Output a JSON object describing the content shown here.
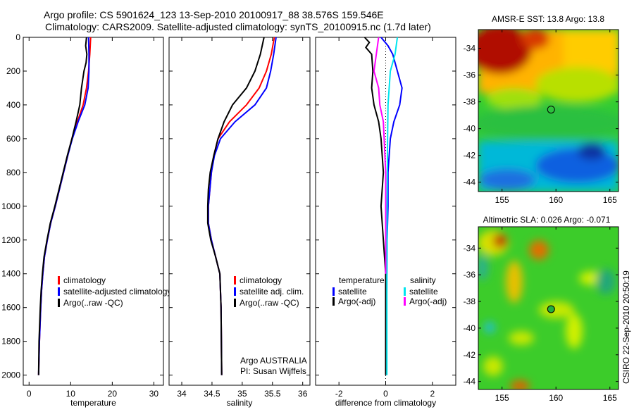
{
  "title_line1": "Argo profile: CS 5901624_123 13-Sep-2010 20100917_88 38.576S 159.546E",
  "title_line2": "Climatology: CARS2009. Satellite-adjusted climatology: synTS_20100915.nc (1.7d later)",
  "colors": {
    "climatology": "#ff0000",
    "satellite": "#0000ff",
    "argo": "#000000",
    "sal_satellite": "#00e5ee",
    "sal_argo": "#ff00ff"
  },
  "chart_data": [
    {
      "type": "line",
      "name": "temperature",
      "xlabel": "temperature",
      "ylabel": "depth",
      "xlim": [
        -1.4,
        32.3
      ],
      "ylim": [
        0,
        2060
      ],
      "xticks": [
        0,
        10,
        20,
        30
      ],
      "yticks": [
        0,
        200,
        400,
        600,
        800,
        1000,
        1200,
        1400,
        1600,
        1800,
        2000
      ],
      "legend": [
        "climatology",
        "satellite-adjusted climatology",
        "Argo(..raw -QC)"
      ],
      "series": [
        {
          "name": "climatology",
          "color": "climatology",
          "depth": [
            0,
            100,
            200,
            300,
            400,
            500,
            600,
            700,
            800,
            900,
            1000,
            1100,
            1200,
            1300,
            1400,
            1500,
            1600,
            1800,
            2000
          ],
          "values": [
            14.8,
            14.6,
            14.3,
            13.8,
            13.0,
            11.6,
            10.3,
            9.3,
            8.3,
            7.3,
            6.3,
            5.2,
            4.4,
            3.7,
            3.3,
            3.0,
            2.8,
            2.5,
            2.3
          ]
        },
        {
          "name": "satellite-adjusted climatology",
          "color": "satellite",
          "depth": [
            0,
            100,
            200,
            300,
            400,
            500,
            600,
            700,
            800,
            900,
            1000,
            1100,
            1200,
            1300,
            1400,
            1500,
            1600,
            1800,
            2000
          ],
          "values": [
            14.3,
            14.4,
            14.4,
            14.2,
            13.4,
            11.8,
            10.4,
            9.3,
            8.3,
            7.3,
            6.3,
            5.2,
            4.4,
            3.7,
            3.3,
            3.0,
            2.8,
            2.5,
            2.3
          ]
        },
        {
          "name": "Argo(..raw -QC)",
          "color": "argo",
          "depth": [
            0,
            50,
            100,
            150,
            200,
            300,
            400,
            500,
            600,
            700,
            800,
            900,
            1000,
            1100,
            1200,
            1300,
            1400,
            1500,
            1600,
            1800,
            2000
          ],
          "values": [
            13.8,
            13.6,
            13.9,
            13.7,
            13.2,
            12.6,
            12.2,
            11.3,
            10.3,
            9.2,
            8.2,
            7.2,
            6.2,
            5.1,
            4.3,
            3.6,
            3.2,
            2.9,
            2.7,
            2.4,
            2.3
          ]
        }
      ]
    },
    {
      "type": "line",
      "name": "salinity",
      "xlabel": "salinity",
      "xlim": [
        33.79,
        36.12
      ],
      "ylim": [
        0,
        2060
      ],
      "xticks": [
        34,
        34.5,
        35,
        35.5,
        36
      ],
      "legend": [
        "climatology",
        "satellite adj. clim.",
        "Argo(..raw -QC)"
      ],
      "annotation": [
        "Argo AUSTRALIA",
        "PI: Susan Wijffels"
      ],
      "series": [
        {
          "name": "climatology",
          "color": "climatology",
          "depth": [
            0,
            100,
            200,
            300,
            400,
            500,
            600,
            700,
            800,
            1000,
            1100,
            1200,
            1300,
            1400,
            1600,
            2000
          ],
          "values": [
            35.53,
            35.48,
            35.4,
            35.28,
            35.07,
            34.79,
            34.6,
            34.53,
            34.49,
            34.44,
            34.44,
            34.49,
            34.56,
            34.63,
            34.65,
            34.66
          ]
        },
        {
          "name": "satellite adj. clim.",
          "color": "satellite",
          "depth": [
            0,
            100,
            200,
            300,
            400,
            500,
            600,
            700,
            800,
            1000,
            1100,
            1200,
            1300,
            1400,
            1600,
            2000
          ],
          "values": [
            35.56,
            35.52,
            35.47,
            35.4,
            35.21,
            34.88,
            34.64,
            34.54,
            34.49,
            34.44,
            34.44,
            34.49,
            34.56,
            34.63,
            34.65,
            34.66
          ]
        },
        {
          "name": "Argo(..raw -QC)",
          "color": "argo",
          "depth": [
            0,
            100,
            200,
            300,
            400,
            500,
            600,
            700,
            800,
            900,
            1000,
            1100,
            1200,
            1300,
            1400,
            1600,
            2000
          ],
          "values": [
            35.36,
            35.3,
            35.21,
            35.07,
            34.84,
            34.7,
            34.6,
            34.53,
            34.47,
            34.44,
            34.43,
            34.43,
            34.48,
            34.56,
            34.63,
            34.65,
            34.66
          ]
        }
      ]
    },
    {
      "type": "line",
      "name": "difference",
      "xlabel": "difference from climatology",
      "xlim": [
        -3,
        3
      ],
      "ylim": [
        0,
        2060
      ],
      "xticks": [
        -2,
        0,
        2
      ],
      "legend_left_title": "temperature",
      "legend_right_title": "salinity",
      "legend_left": [
        "satellite",
        "Argo(-adj)"
      ],
      "legend_right": [
        "satellite",
        "Argo(-adj)"
      ],
      "series": [
        {
          "name": "temperature satellite",
          "color": "satellite",
          "depth": [
            0,
            50,
            100,
            200,
            300,
            400,
            500,
            600,
            800,
            1000,
            1200,
            1400,
            2000
          ],
          "values": [
            -0.2,
            0.1,
            0.3,
            0.5,
            0.7,
            0.6,
            0.35,
            0.2,
            0.1,
            0.1,
            0.06,
            0.05,
            0.02
          ]
        },
        {
          "name": "temperature Argo(-adj)",
          "color": "argo",
          "depth": [
            0,
            30,
            60,
            100,
            200,
            300,
            400,
            500,
            600,
            800,
            1000,
            1200,
            1400,
            2000
          ],
          "values": [
            -0.9,
            -0.7,
            -0.85,
            -0.6,
            -0.55,
            -0.6,
            -0.5,
            -0.3,
            -0.2,
            -0.1,
            -0.2,
            -0.1,
            0,
            0
          ]
        },
        {
          "name": "salinity satellite",
          "color": "sal_satellite",
          "depth": [
            0,
            100,
            200,
            400,
            600,
            1000,
            1400,
            2000
          ],
          "values": [
            0.5,
            0.4,
            0.2,
            0.1,
            0.08,
            0.06,
            0.05,
            0.05
          ]
        },
        {
          "name": "salinity Argo(-adj)",
          "color": "sal_argo",
          "depth": [
            0,
            100,
            200,
            300,
            400,
            500,
            800,
            1400
          ],
          "values": [
            -0.3,
            -0.4,
            -0.5,
            -0.3,
            -0.25,
            -0.1,
            0,
            0.0
          ]
        }
      ]
    }
  ],
  "maps": [
    {
      "title": "AMSR-E SST: 13.8 Argo: 13.8",
      "lon_ticks": [
        155,
        160,
        165
      ],
      "lat_ticks": [
        -34,
        -36,
        -38,
        -40,
        -42,
        -44
      ],
      "lonlim": [
        152.8,
        165.8
      ],
      "latlim": [
        -44.7,
        -32.6
      ],
      "argo_lon": 159.546,
      "argo_lat": -38.576
    },
    {
      "title": "Altimetric SLA: 0.026 Argo: -0.071",
      "lon_ticks": [
        155,
        160,
        165
      ],
      "lat_ticks": [
        -34,
        -36,
        -38,
        -40,
        -42,
        -44
      ],
      "lonlim": [
        152.8,
        165.8
      ],
      "latlim": [
        -44.6,
        -32.4
      ],
      "argo_lon": 159.546,
      "argo_lat": -38.576
    }
  ],
  "footer_vertical": "CSIRO 22-Sep-2010 20:50:19"
}
